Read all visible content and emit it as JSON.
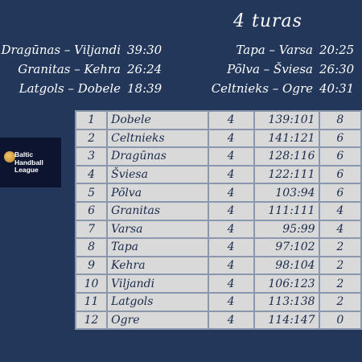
{
  "round": {
    "title": "4 turas"
  },
  "results_left": [
    {
      "match": "Dragūnas – Viljandi",
      "score": "39:30"
    },
    {
      "match": "Granitas – Kehra",
      "score": "26:24"
    },
    {
      "match": "Latgols – Dobele",
      "score": "18:39"
    }
  ],
  "results_right": [
    {
      "match": "Tapa – Varsa",
      "score": "20:25"
    },
    {
      "match": "Põlva – Šviesa",
      "score": "26:30"
    },
    {
      "match": "Celtnieks – Ogre",
      "score": "40:31"
    }
  ],
  "logo": {
    "line1": "Baltic",
    "line2": "Handball",
    "line3": "League",
    "colors": {
      "ball": "#d9a24a",
      "bg": "#0d1430"
    }
  },
  "standings": [
    {
      "pos": "1",
      "team": "Dobele",
      "games": "4",
      "goals": "139:101",
      "pts": "8"
    },
    {
      "pos": "2",
      "team": "Celtnieks",
      "games": "4",
      "goals": "141:121",
      "pts": "6"
    },
    {
      "pos": "3",
      "team": "Dragūnas",
      "games": "4",
      "goals": "128:116",
      "pts": "6"
    },
    {
      "pos": "4",
      "team": "Šviesa",
      "games": "4",
      "goals": "122:111",
      "pts": "6"
    },
    {
      "pos": "5",
      "team": "Põlva",
      "games": "4",
      "goals": "103:94",
      "pts": "6"
    },
    {
      "pos": "6",
      "team": "Granitas",
      "games": "4",
      "goals": "111:111",
      "pts": "4"
    },
    {
      "pos": "7",
      "team": "Varsa",
      "games": "4",
      "goals": "95:99",
      "pts": "4"
    },
    {
      "pos": "8",
      "team": "Tapa",
      "games": "4",
      "goals": "97:102",
      "pts": "2"
    },
    {
      "pos": "9",
      "team": "Kehra",
      "games": "4",
      "goals": "98:104",
      "pts": "2"
    },
    {
      "pos": "10",
      "team": "Viljandi",
      "games": "4",
      "goals": "106:123",
      "pts": "2"
    },
    {
      "pos": "11",
      "team": "Latgols",
      "games": "4",
      "goals": "113:138",
      "pts": "2"
    },
    {
      "pos": "12",
      "team": "Ogre",
      "games": "4",
      "goals": "114:147",
      "pts": "0"
    }
  ],
  "colors": {
    "background": "#22375a",
    "table_bg": "#d9d9d9",
    "table_text": "#1a2b4c",
    "table_border": "#8a97ad"
  }
}
